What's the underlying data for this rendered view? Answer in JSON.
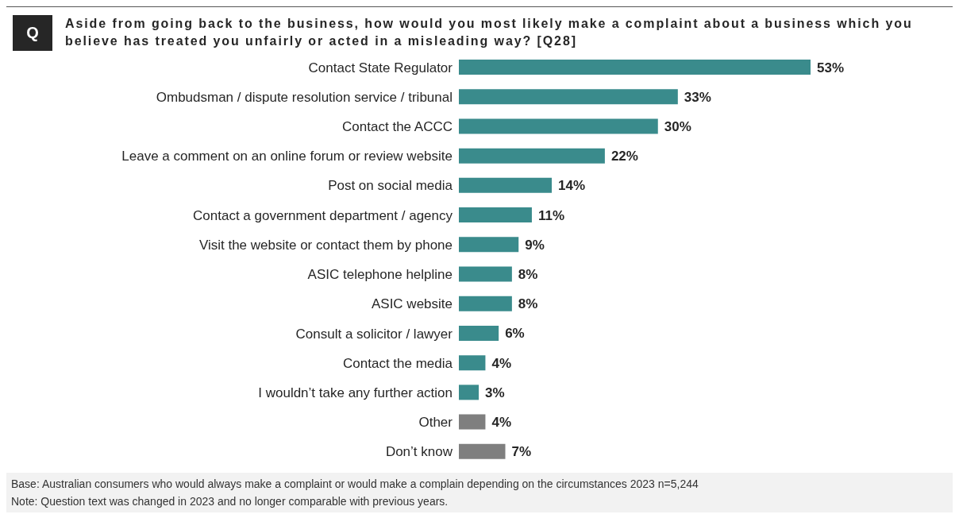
{
  "chart_data": {
    "type": "bar",
    "orientation": "horizontal",
    "title": "Aside from going back to the business, how would you most likely make a complaint about a business which you believe has treated you unfairly or acted in a misleading way? [Q28]",
    "annotations": [
      "Q",
      "Base: Australian consumers who would always make a complaint or would make a complain depending on the circumstances 2023 n=5,244",
      "Note: Question text was changed in 2023 and no longer comparable with previous years."
    ],
    "categories": [
      "Contact State Regulator",
      "Ombudsman / dispute resolution service / tribunal",
      "Contact the ACCC",
      "Leave a comment on an online forum or review website",
      "Post on social media",
      "Contact a government department / agency",
      "Visit the website or contact them by phone",
      "ASIC telephone helpline",
      "ASIC website",
      "Consult a solicitor / lawyer",
      "Contact the media",
      "I wouldn’t take any further action",
      "Other",
      "Don’t know"
    ],
    "values": [
      53,
      33,
      30,
      22,
      14,
      11,
      9,
      8,
      8,
      6,
      4,
      3,
      4,
      7
    ],
    "value_labels": [
      "53%",
      "33%",
      "30%",
      "22%",
      "14%",
      "11%",
      "9%",
      "8%",
      "8%",
      "6%",
      "4%",
      "3%",
      "4%",
      "7%"
    ],
    "colors": [
      "#3a8b8c",
      "#3a8b8c",
      "#3a8b8c",
      "#3a8b8c",
      "#3a8b8c",
      "#3a8b8c",
      "#3a8b8c",
      "#3a8b8c",
      "#3a8b8c",
      "#3a8b8c",
      "#3a8b8c",
      "#3a8b8c",
      "#7f7f7f",
      "#7f7f7f"
    ]
  }
}
